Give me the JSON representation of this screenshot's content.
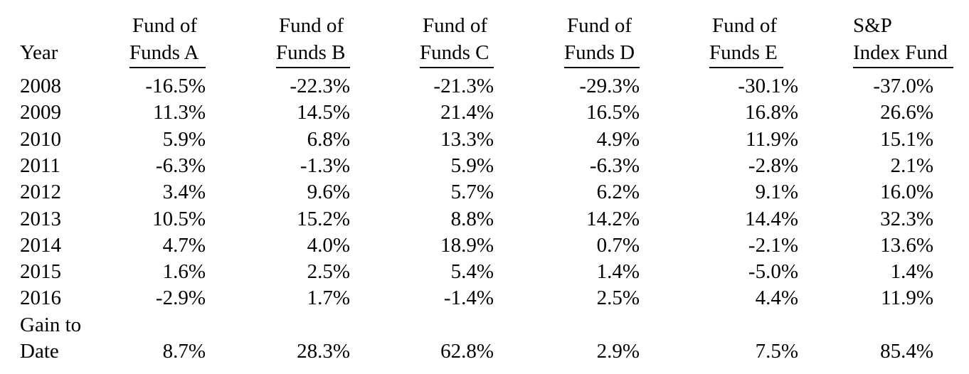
{
  "table": {
    "header": {
      "year": "Year",
      "funds": [
        {
          "line1": "Fund of",
          "line2": "Funds A"
        },
        {
          "line1": "Fund of",
          "line2": "Funds B"
        },
        {
          "line1": "Fund of",
          "line2": "Funds C"
        },
        {
          "line1": "Fund of",
          "line2": "Funds D"
        },
        {
          "line1": "Fund of",
          "line2": "Funds E"
        },
        {
          "line1": "S&P",
          "line2": "Index Fund"
        }
      ]
    },
    "rows": [
      {
        "year": "2008",
        "values": [
          "-16.5%",
          "-22.3%",
          "-21.3%",
          "-29.3%",
          "-30.1%",
          "-37.0%"
        ]
      },
      {
        "year": "2009",
        "values": [
          "11.3%",
          "14.5%",
          "21.4%",
          "16.5%",
          "16.8%",
          "26.6%"
        ]
      },
      {
        "year": "2010",
        "values": [
          "5.9%",
          "6.8%",
          "13.3%",
          "4.9%",
          "11.9%",
          "15.1%"
        ]
      },
      {
        "year": "2011",
        "values": [
          "-6.3%",
          "-1.3%",
          "5.9%",
          "-6.3%",
          "-2.8%",
          "2.1%"
        ]
      },
      {
        "year": "2012",
        "values": [
          "3.4%",
          "9.6%",
          "5.7%",
          "6.2%",
          "9.1%",
          "16.0%"
        ]
      },
      {
        "year": "2013",
        "values": [
          "10.5%",
          "15.2%",
          "8.8%",
          "14.2%",
          "14.4%",
          "32.3%"
        ]
      },
      {
        "year": "2014",
        "values": [
          "4.7%",
          "4.0%",
          "18.9%",
          "0.7%",
          "-2.1%",
          "13.6%"
        ]
      },
      {
        "year": "2015",
        "values": [
          "1.6%",
          "2.5%",
          "5.4%",
          "1.4%",
          "-5.0%",
          "1.4%"
        ]
      },
      {
        "year": "2016",
        "values": [
          "-2.9%",
          "1.7%",
          "-1.4%",
          "2.5%",
          "4.4%",
          "11.9%"
        ]
      }
    ],
    "summary": {
      "label_line1": "Gain to",
      "label_line2": "Date",
      "values": [
        "8.7%",
        "28.3%",
        "62.8%",
        "2.9%",
        "7.5%",
        "85.4%"
      ]
    }
  }
}
